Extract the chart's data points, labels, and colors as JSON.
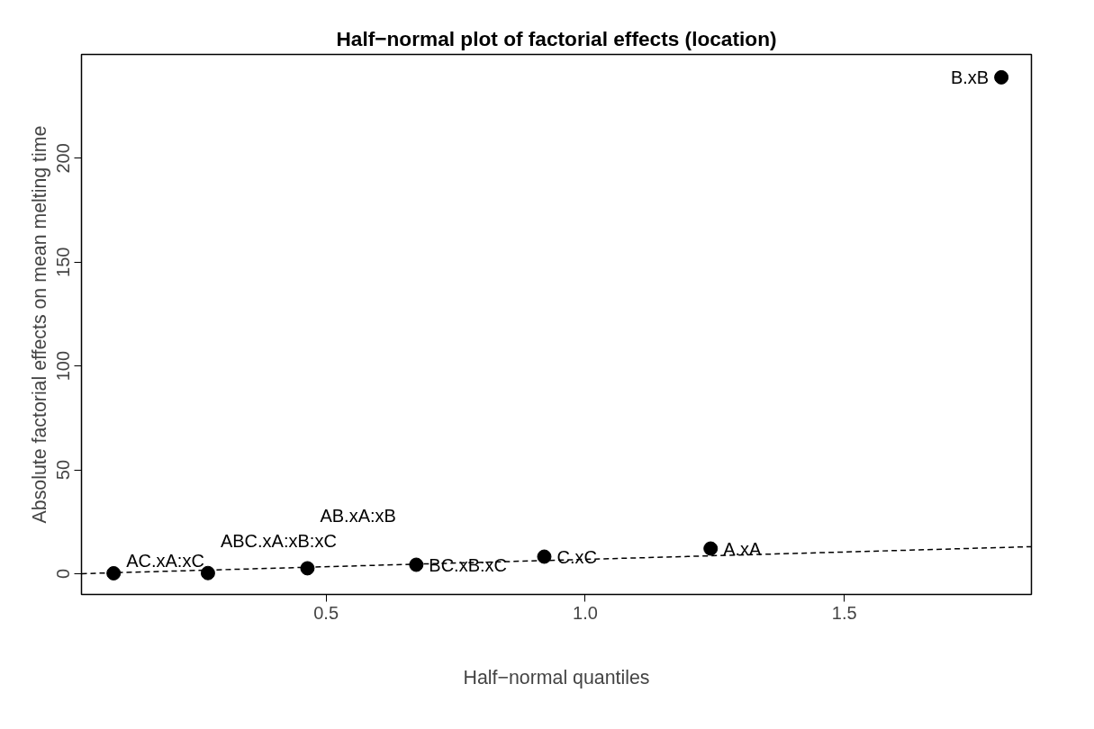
{
  "chart_data": {
    "type": "scatter",
    "title": "Half−normal plot of factorial effects (location)",
    "xlabel": "Half−normal quantiles",
    "ylabel": "Absolute factorial effects on mean melting time",
    "xlim": [
      0.028,
      1.861
    ],
    "ylim": [
      -10,
      250
    ],
    "xticks": [
      0.5,
      {
        "value": 1,
        "label": "1.0"
      },
      1.5
    ],
    "yticks": [
      0,
      50,
      100,
      150,
      200
    ],
    "grid": false,
    "series": [
      {
        "color": "#000000",
        "marker": "circle",
        "x": [
          0.09,
          0.272,
          0.464,
          0.674,
          0.921,
          1.242,
          1.803
        ],
        "values": [
          0.2,
          0.3,
          2.6,
          4.3,
          8.2,
          12.1,
          239
        ],
        "value_labels": [
          "AC.xA:xC",
          "ABC.xA:xB:xC",
          "AB.xA:xB",
          "BC.xB:xC",
          "C.xC",
          "A.xA",
          "B.xB"
        ]
      },
      {
        "type": "line",
        "color": "#000000",
        "line_style": "dashed",
        "x": [
          0.028,
          1.861
        ],
        "values": [
          0.0,
          13.0
        ]
      }
    ]
  }
}
